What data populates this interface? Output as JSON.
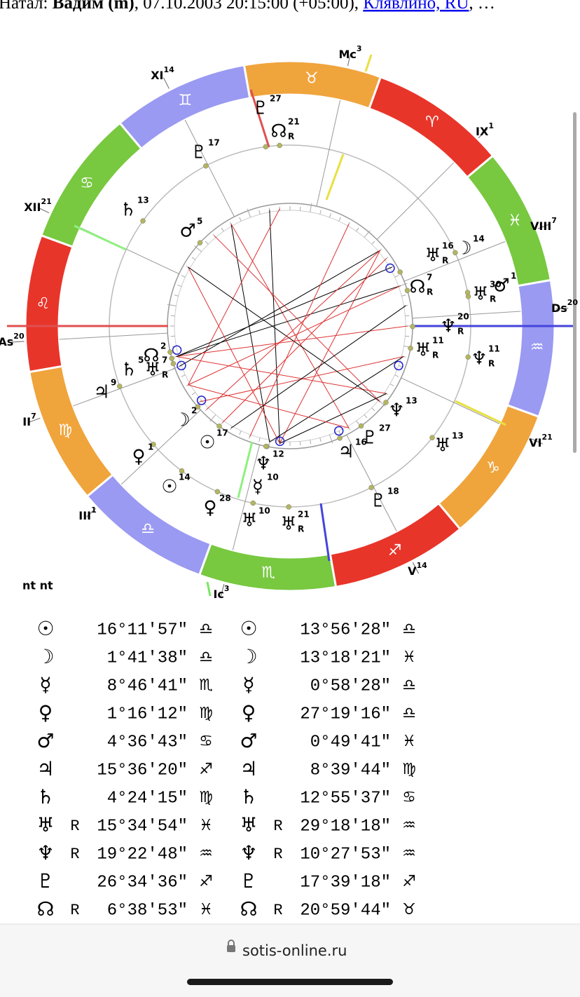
{
  "header": {
    "prefix": "Натал: ",
    "name": "Вадим (m)",
    "details": ", 07.10.2003 20:15:00 (+05:00), ",
    "place": "Клявлино, RU",
    "ellipsis": ", …"
  },
  "wheel": {
    "signs": [
      {
        "glyph": "♌",
        "color": "#e8352a"
      },
      {
        "glyph": "♍",
        "color": "#f0a43c"
      },
      {
        "glyph": "♎",
        "color": "#9a9af2"
      },
      {
        "glyph": "♏",
        "color": "#78c840"
      },
      {
        "glyph": "♐",
        "color": "#e8352a"
      },
      {
        "glyph": "♑",
        "color": "#f0a43c"
      },
      {
        "glyph": "♒",
        "color": "#9a9af2"
      },
      {
        "glyph": "♓",
        "color": "#78c840"
      },
      {
        "glyph": "♈",
        "color": "#e8352a"
      },
      {
        "glyph": "♉",
        "color": "#f0a43c"
      },
      {
        "glyph": "♊",
        "color": "#9a9af2"
      },
      {
        "glyph": "♋",
        "color": "#78c840"
      }
    ],
    "houses": [
      {
        "name": "Mc",
        "degree": 3
      },
      {
        "name": "IX",
        "degree": 1
      },
      {
        "name": "VIII",
        "degree": 7
      },
      {
        "name": "Ds",
        "degree": 20
      },
      {
        "name": "VI",
        "degree": 21
      },
      {
        "name": "V",
        "degree": 14
      },
      {
        "name": "Ic",
        "degree": 3
      },
      {
        "name": "III",
        "degree": 1
      },
      {
        "name": "II",
        "degree": 7
      },
      {
        "name": "As",
        "degree": 20
      },
      {
        "name": "XII",
        "degree": 21
      },
      {
        "name": "XI",
        "degree": 14
      }
    ],
    "planets": [
      {
        "glyph": "♇",
        "degree": 27
      },
      {
        "glyph": "☊",
        "degree": 21,
        "retro": "R"
      },
      {
        "glyph": "♇",
        "degree": 17
      },
      {
        "glyph": "♄",
        "degree": 13
      },
      {
        "glyph": "♂",
        "degree": 5
      },
      {
        "glyph": "♅",
        "degree": 16,
        "retro": "R"
      },
      {
        "glyph": "☽",
        "degree": 14
      },
      {
        "glyph": "☊",
        "degree": 7,
        "retro": "R"
      },
      {
        "glyph": "♅",
        "degree": 30,
        "retro": "R"
      },
      {
        "glyph": "♂",
        "degree": 1
      },
      {
        "glyph": "♆",
        "degree": 20,
        "retro": "R"
      },
      {
        "glyph": "♅",
        "degree": 11,
        "retro": "R"
      },
      {
        "glyph": "♆",
        "degree": 11,
        "retro": "R"
      },
      {
        "glyph": "☊",
        "degree": 2
      },
      {
        "glyph": "♅",
        "degree": 7,
        "retro": "R"
      },
      {
        "glyph": "♄",
        "degree": 5
      },
      {
        "glyph": "♃",
        "degree": 9
      },
      {
        "glyph": "☽",
        "degree": 2
      },
      {
        "glyph": "♆",
        "degree": 13
      },
      {
        "glyph": "♇",
        "degree": 27
      },
      {
        "glyph": "♃",
        "degree": 16
      },
      {
        "glyph": "♀",
        "degree": 1
      },
      {
        "glyph": "☉",
        "degree": 17
      },
      {
        "glyph": "♅",
        "degree": 13
      },
      {
        "glyph": "♆",
        "degree": 12
      },
      {
        "glyph": "☉",
        "degree": 14
      },
      {
        "glyph": "☿",
        "degree": 10
      },
      {
        "glyph": "♇",
        "degree": 18
      },
      {
        "glyph": "♀",
        "degree": 28
      },
      {
        "glyph": "♅",
        "degree": 10
      },
      {
        "glyph": "♅",
        "degree": 21,
        "retro": "R"
      }
    ]
  },
  "table": {
    "caption": "nt nt",
    "rows": [
      {
        "natal": {
          "planet": "☉",
          "position": "16°11′57″",
          "sign": "♎"
        },
        "transit": {
          "planet": "☉",
          "position": "13°56′28″",
          "sign": "♎"
        }
      },
      {
        "natal": {
          "planet": "☽",
          "position": "1°41′38″",
          "sign": "♎"
        },
        "transit": {
          "planet": "☽",
          "position": "13°18′21″",
          "sign": "♓"
        }
      },
      {
        "natal": {
          "planet": "☿",
          "position": "8°46′41″",
          "sign": "♏"
        },
        "transit": {
          "planet": "☿",
          "position": "0°58′28″",
          "sign": "♎"
        }
      },
      {
        "natal": {
          "planet": "♀",
          "position": "1°16′12″",
          "sign": "♍"
        },
        "transit": {
          "planet": "♀",
          "position": "27°19′16″",
          "sign": "♎"
        }
      },
      {
        "natal": {
          "planet": "♂",
          "position": "4°36′43″",
          "sign": "♋"
        },
        "transit": {
          "planet": "♂",
          "position": "0°49′41″",
          "sign": "♓"
        }
      },
      {
        "natal": {
          "planet": "♃",
          "position": "15°36′20″",
          "sign": "♐"
        },
        "transit": {
          "planet": "♃",
          "position": "8°39′44″",
          "sign": "♍"
        }
      },
      {
        "natal": {
          "planet": "♄",
          "position": "4°24′15″",
          "sign": "♍"
        },
        "transit": {
          "planet": "♄",
          "position": "12°55′37″",
          "sign": "♋"
        }
      },
      {
        "natal": {
          "planet": "♅",
          "retro": "R",
          "position": "15°34′54″",
          "sign": "♓"
        },
        "transit": {
          "planet": "♅",
          "retro": "R",
          "position": "29°18′18″",
          "sign": "♒"
        }
      },
      {
        "natal": {
          "planet": "♆",
          "retro": "R",
          "position": "19°22′48″",
          "sign": "♒"
        },
        "transit": {
          "planet": "♆",
          "retro": "R",
          "position": "10°27′53″",
          "sign": "♒"
        }
      },
      {
        "natal": {
          "planet": "♇",
          "position": "26°34′36″",
          "sign": "♐"
        },
        "transit": {
          "planet": "♇",
          "position": "17°39′18″",
          "sign": "♐"
        }
      },
      {
        "natal": {
          "planet": "☊",
          "retro": "R",
          "position": "6°38′53″",
          "sign": "♓"
        },
        "transit": {
          "planet": "☊",
          "retro": "R",
          "position": "20°59′44″",
          "sign": "♉"
        }
      }
    ]
  },
  "footer": {
    "url": "sotis-online.ru"
  }
}
